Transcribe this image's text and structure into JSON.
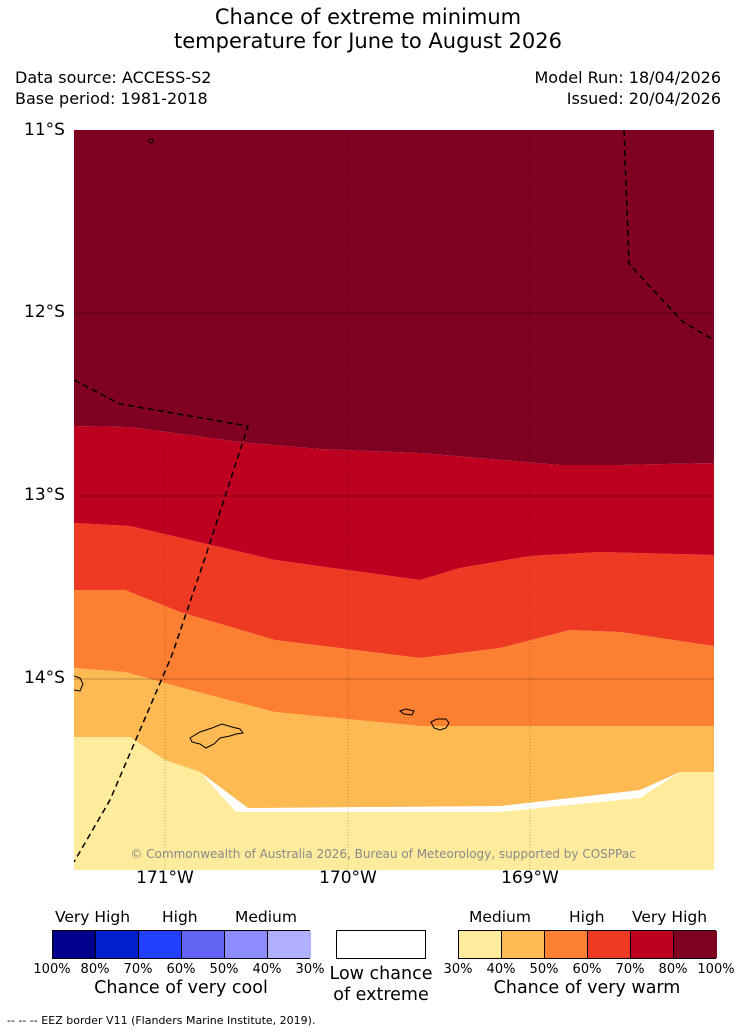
{
  "title": {
    "line1": "Chance of extreme minimum",
    "line2": "temperature for June to August 2026"
  },
  "meta": {
    "data_source": "Data source: ACCESS-S2",
    "base_period": "Base period: 1981-2018",
    "model_run": "Model Run: 18/04/2026",
    "issued": "Issued: 20/04/2026"
  },
  "map": {
    "lat_labels": [
      "11°S",
      "12°S",
      "13°S",
      "14°S"
    ],
    "lon_labels": [
      "171°W",
      "170°W",
      "169°W"
    ],
    "band_colors": {
      "very_high_warm_80_100": "#7f0020",
      "high_warm_70_80": "#bd0020",
      "high_warm_60_70": "#ee3a22",
      "medium_warm_50_60": "#fd7f31",
      "medium_warm_40_50": "#fdb952",
      "medium_warm_30_40": "#feeb9c"
    },
    "copyright": "© Commonwealth of Australia 2026, Bureau of Meteorology, supported by COSPPac"
  },
  "colorbar": {
    "cool": {
      "group_labels": [
        "Very High",
        "High",
        "Medium"
      ],
      "colors": [
        "#00008c",
        "#0020cc",
        "#2241ff",
        "#6464f4",
        "#8c8cff",
        "#b0b0ff"
      ],
      "ticks": [
        "100%",
        "80%",
        "70%",
        "60%",
        "50%",
        "40%",
        "30%"
      ],
      "title": "Chance of very cool"
    },
    "neutral": {
      "color": "#ffffff",
      "title_line1": "Low chance",
      "title_line2": "of extreme"
    },
    "warm": {
      "group_labels": [
        "Medium",
        "High",
        "Very High"
      ],
      "colors": [
        "#feeb9c",
        "#fdb952",
        "#fd7f31",
        "#ee3a22",
        "#bd0020",
        "#7f0020"
      ],
      "ticks": [
        "30%",
        "40%",
        "50%",
        "60%",
        "70%",
        "80%",
        "100%"
      ],
      "title": "Chance of very warm"
    }
  },
  "footnote": "--  --  -- EEZ border V11 (Flanders Marine Institute, 2019)."
}
